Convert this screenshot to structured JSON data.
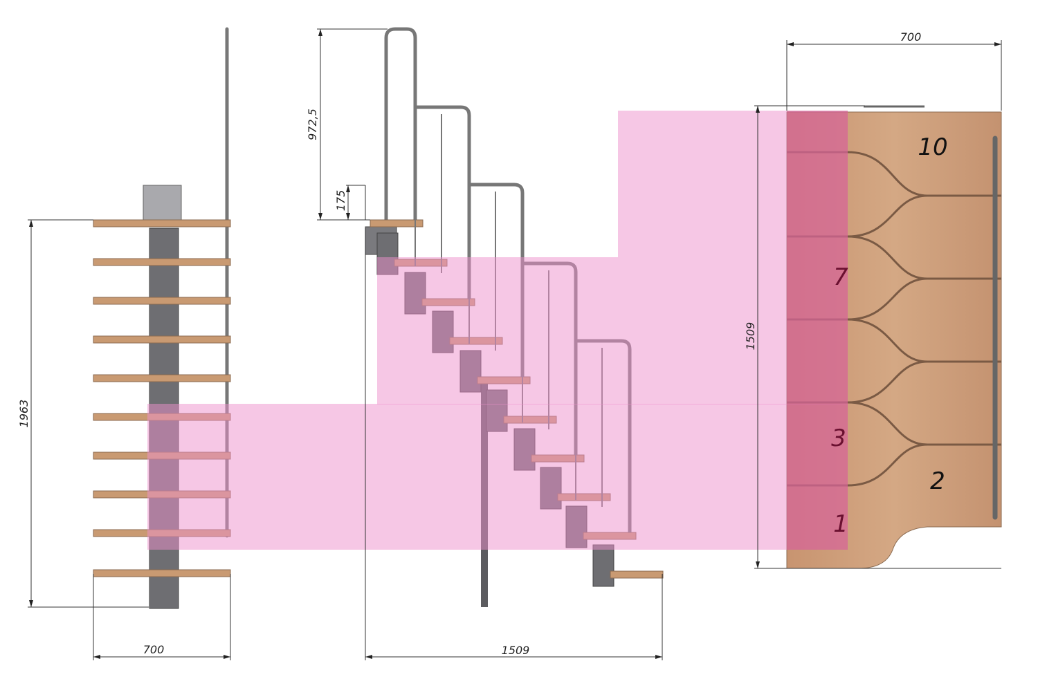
{
  "side_view": {
    "width_label": "700",
    "height_label": "1963"
  },
  "front_view": {
    "handrail_height_label": "972,5",
    "riser_label": "175",
    "length_label": "1509"
  },
  "plan_view": {
    "width_label": "700",
    "length_label": "1509",
    "step_numbers": [
      "10",
      "7",
      "3",
      "2",
      "1"
    ]
  },
  "colors": {
    "wood": "#c99a72",
    "metal": "#6e6e72",
    "highlight": "#f2a6d6"
  }
}
